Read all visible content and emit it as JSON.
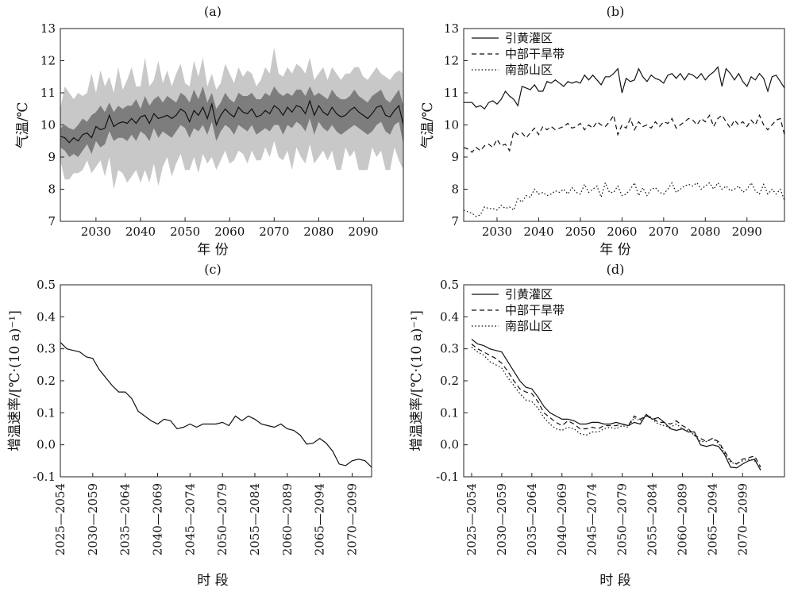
{
  "chart_data": [
    {
      "panel": "(a)",
      "type": "line",
      "ylabel": "气温/℃",
      "xlabel": "年 份",
      "ylim": [
        7,
        13
      ],
      "yticks": [
        "7",
        "8",
        "9",
        "10",
        "11",
        "12",
        "13"
      ],
      "xticks": [
        "2030",
        "2040",
        "2050",
        "2060",
        "2070",
        "2080",
        "2090"
      ],
      "x_range": [
        2022,
        2099
      ],
      "colors": {
        "outer_band": "#c8c8c8",
        "inner_band": "#7d7d7d",
        "line": "#111111"
      },
      "mean": [
        9.65,
        9.6,
        9.45,
        9.6,
        9.5,
        9.7,
        9.75,
        9.6,
        9.95,
        9.85,
        9.9,
        10.3,
        9.95,
        10.05,
        10.1,
        10.05,
        10.2,
        10.05,
        10.25,
        10.3,
        10.05,
        10.35,
        10.2,
        10.25,
        10.3,
        10.2,
        10.3,
        10.5,
        10.4,
        10.1,
        10.45,
        10.3,
        10.55,
        10.2,
        10.65,
        10.0,
        10.3,
        10.5,
        10.35,
        10.25,
        10.55,
        10.4,
        10.35,
        10.5,
        10.25,
        10.3,
        10.45,
        10.35,
        10.6,
        10.5,
        10.3,
        10.55,
        10.4,
        10.6,
        10.55,
        10.35,
        10.75,
        10.3,
        10.6,
        10.4,
        10.3,
        10.55,
        10.35,
        10.25,
        10.3,
        10.45,
        10.55,
        10.4,
        10.3,
        10.2,
        10.35,
        10.55,
        10.6,
        10.3,
        10.25,
        10.45,
        10.6,
        10.0
      ],
      "inner_band": {
        "upper": [
          9.9,
          10.0,
          9.9,
          9.85,
          10.0,
          10.2,
          10.1,
          10.3,
          10.4,
          10.6,
          10.4,
          10.7,
          10.4,
          10.6,
          10.5,
          10.6,
          10.6,
          10.8,
          10.5,
          10.9,
          10.6,
          10.8,
          10.9,
          10.7,
          10.9,
          10.8,
          10.7,
          11.0,
          10.9,
          10.7,
          11.1,
          10.8,
          11.2,
          10.7,
          11.0,
          10.5,
          10.7,
          11.0,
          10.8,
          10.7,
          11.0,
          10.9,
          10.9,
          11.0,
          10.8,
          10.8,
          11.0,
          10.9,
          11.2,
          11.0,
          10.9,
          11.0,
          10.9,
          11.1,
          11.1,
          10.9,
          11.2,
          10.9,
          11.0,
          10.9,
          10.8,
          11.1,
          10.9,
          10.8,
          10.8,
          10.9,
          11.1,
          10.9,
          10.8,
          10.7,
          10.9,
          11.0,
          11.1,
          10.8,
          10.7,
          10.9,
          11.1,
          10.6
        ],
        "lower": [
          9.3,
          9.2,
          9.0,
          9.1,
          9.0,
          9.2,
          9.4,
          9.1,
          9.5,
          9.3,
          9.4,
          9.8,
          9.5,
          9.6,
          9.6,
          9.5,
          9.7,
          9.5,
          9.8,
          9.7,
          9.5,
          9.9,
          9.6,
          9.8,
          9.7,
          9.6,
          9.8,
          10.0,
          9.9,
          9.6,
          9.9,
          9.8,
          10.0,
          9.7,
          10.1,
          9.5,
          9.8,
          10.0,
          9.9,
          9.7,
          10.0,
          9.9,
          9.8,
          10.0,
          9.7,
          9.8,
          9.9,
          9.8,
          10.0,
          10.0,
          9.7,
          10.0,
          9.9,
          10.1,
          10.0,
          9.8,
          10.2,
          9.7,
          10.1,
          9.9,
          9.8,
          10.0,
          9.8,
          9.7,
          9.8,
          9.9,
          10.0,
          9.9,
          9.8,
          9.7,
          9.8,
          10.0,
          10.1,
          9.8,
          9.7,
          10.0,
          10.1,
          9.4
        ]
      },
      "outer_band": {
        "upper": [
          10.5,
          11.2,
          11.0,
          10.8,
          11.0,
          10.9,
          11.0,
          11.6,
          11.0,
          11.7,
          11.2,
          11.5,
          11.0,
          11.8,
          11.1,
          11.4,
          11.8,
          11.2,
          11.2,
          12.1,
          11.2,
          11.4,
          12.0,
          11.3,
          11.7,
          11.2,
          11.6,
          11.9,
          11.3,
          11.2,
          12.0,
          11.5,
          12.1,
          11.2,
          11.6,
          11.1,
          11.3,
          11.9,
          11.6,
          11.3,
          11.8,
          11.5,
          11.7,
          11.6,
          11.2,
          11.4,
          11.8,
          11.6,
          12.4,
          11.6,
          11.5,
          11.8,
          11.6,
          11.9,
          11.8,
          11.6,
          12.1,
          11.4,
          11.6,
          11.8,
          11.4,
          11.8,
          11.6,
          11.4,
          11.6,
          11.6,
          11.8,
          11.8,
          11.5,
          11.4,
          11.6,
          11.8,
          11.6,
          11.5,
          11.4,
          11.6,
          11.7,
          11.6
        ],
        "lower": [
          8.9,
          8.3,
          8.3,
          8.5,
          8.5,
          8.6,
          8.9,
          8.5,
          8.7,
          8.9,
          8.4,
          9.0,
          8.0,
          8.6,
          8.5,
          8.2,
          8.4,
          8.6,
          8.2,
          8.6,
          8.2,
          8.8,
          8.1,
          8.7,
          9.0,
          8.4,
          8.8,
          9.1,
          8.6,
          8.6,
          9.0,
          8.5,
          9.1,
          8.8,
          9.0,
          8.6,
          8.9,
          9.2,
          8.8,
          8.9,
          9.2,
          9.1,
          8.8,
          9.2,
          8.9,
          8.9,
          9.3,
          9.0,
          9.5,
          9.0,
          8.9,
          9.2,
          8.6,
          9.3,
          9.0,
          8.8,
          9.4,
          8.8,
          9.0,
          9.2,
          8.9,
          9.2,
          8.6,
          8.6,
          9.3,
          9.0,
          9.2,
          8.6,
          8.6,
          8.6,
          9.3,
          9.0,
          9.2,
          8.6,
          8.6,
          9.3,
          8.9,
          8.6
        ]
      }
    },
    {
      "panel": "(b)",
      "type": "line",
      "ylabel": "气温/℃",
      "xlabel": "年 份",
      "ylim": [
        7,
        13
      ],
      "yticks": [
        "7",
        "8",
        "9",
        "10",
        "11",
        "12",
        "13"
      ],
      "xticks": [
        "2030",
        "2040",
        "2050",
        "2060",
        "2070",
        "2080",
        "2090"
      ],
      "x_range": [
        2022,
        2099
      ],
      "legend_position": "top-left",
      "series": [
        {
          "name": "引黄灌区",
          "dash": "solid",
          "values": [
            10.7,
            10.7,
            10.7,
            10.55,
            10.6,
            10.5,
            10.7,
            10.75,
            10.65,
            10.8,
            11.05,
            10.9,
            10.8,
            10.6,
            11.2,
            11.15,
            11.1,
            11.25,
            11.05,
            11.05,
            11.35,
            11.3,
            11.4,
            11.3,
            11.2,
            11.35,
            11.3,
            11.35,
            11.3,
            11.55,
            11.4,
            11.55,
            11.4,
            11.25,
            11.5,
            11.5,
            11.6,
            11.75,
            11.0,
            11.45,
            11.35,
            11.4,
            11.75,
            11.5,
            11.35,
            11.55,
            11.45,
            11.4,
            11.3,
            11.55,
            11.6,
            11.45,
            11.6,
            11.4,
            11.6,
            11.55,
            11.45,
            11.6,
            11.4,
            11.55,
            11.65,
            11.8,
            11.2,
            11.75,
            11.6,
            11.4,
            11.6,
            11.35,
            11.2,
            11.5,
            11.4,
            11.6,
            11.45,
            11.05,
            11.5,
            11.55,
            11.35,
            11.15
          ]
        },
        {
          "name": "中部干旱带",
          "dash": "dashed",
          "values": [
            9.3,
            9.25,
            9.15,
            9.3,
            9.2,
            9.35,
            9.4,
            9.3,
            9.55,
            9.35,
            9.4,
            9.2,
            9.8,
            9.7,
            9.75,
            9.6,
            9.75,
            9.9,
            9.7,
            9.95,
            9.85,
            9.95,
            9.85,
            9.9,
            9.95,
            10.05,
            9.9,
            9.95,
            10.05,
            9.85,
            10.0,
            9.9,
            10.1,
            10.0,
            9.95,
            10.1,
            10.3,
            9.7,
            10.0,
            9.9,
            10.2,
            9.85,
            10.1,
            9.95,
            10.0,
            9.9,
            10.1,
            9.95,
            10.1,
            10.05,
            10.2,
            9.9,
            10.0,
            10.1,
            10.2,
            10.15,
            10.0,
            10.2,
            10.1,
            10.3,
            9.95,
            10.2,
            10.3,
            10.1,
            9.9,
            10.15,
            10.0,
            10.1,
            9.95,
            10.15,
            10.0,
            10.3,
            10.0,
            9.85,
            10.0,
            10.15,
            10.2,
            9.7
          ]
        },
        {
          "name": "南部山区",
          "dash": "dotted",
          "values": [
            7.35,
            7.3,
            7.25,
            7.15,
            7.2,
            7.45,
            7.4,
            7.4,
            7.35,
            7.5,
            7.4,
            7.45,
            7.35,
            7.7,
            7.6,
            7.8,
            7.75,
            8.0,
            7.85,
            7.9,
            7.8,
            7.85,
            7.95,
            7.9,
            8.0,
            7.85,
            8.05,
            7.9,
            7.85,
            8.15,
            7.9,
            8.0,
            8.1,
            7.75,
            8.2,
            7.9,
            7.9,
            8.1,
            7.8,
            7.85,
            8.0,
            8.2,
            7.8,
            8.05,
            7.8,
            8.0,
            8.05,
            7.9,
            7.85,
            8.0,
            8.2,
            7.9,
            8.0,
            8.1,
            8.15,
            8.1,
            8.2,
            8.0,
            8.1,
            8.2,
            8.0,
            8.2,
            8.0,
            8.1,
            7.95,
            8.0,
            8.1,
            7.9,
            8.0,
            8.2,
            7.95,
            7.85,
            8.15,
            7.85,
            8.0,
            7.85,
            8.0,
            7.65
          ]
        }
      ]
    },
    {
      "panel": "(c)",
      "type": "line",
      "ylabel": "增温速率/[℃·(10 a)⁻¹]",
      "xlabel": "时 段",
      "ylim": [
        -0.1,
        0.5
      ],
      "yticks": [
        "-0.1",
        "0.0",
        "0.1",
        "0.2",
        "0.3",
        "0.4",
        "0.5"
      ],
      "xticks": [
        "2025—2054",
        "2030—2059",
        "2035—2064",
        "2040—2069",
        "2045—2074",
        "2050—2079",
        "2055—2084",
        "2060—2089",
        "2065—2094",
        "2070—2099"
      ],
      "periods_start": [
        2022,
        2070
      ],
      "values": [
        0.32,
        0.3,
        0.295,
        0.29,
        0.275,
        0.27,
        0.235,
        0.21,
        0.185,
        0.165,
        0.165,
        0.145,
        0.105,
        0.09,
        0.075,
        0.065,
        0.08,
        0.075,
        0.05,
        0.055,
        0.065,
        0.055,
        0.065,
        0.065,
        0.065,
        0.07,
        0.06,
        0.09,
        0.075,
        0.09,
        0.08,
        0.065,
        0.06,
        0.055,
        0.065,
        0.05,
        0.045,
        0.03,
        0.002,
        0.005,
        0.02,
        0.005,
        -0.02,
        -0.06,
        -0.065,
        -0.05,
        -0.045,
        -0.05,
        -0.07
      ]
    },
    {
      "panel": "(d)",
      "type": "line",
      "ylabel": "增温速率/[℃·(10 a)⁻¹]",
      "xlabel": "时 段",
      "ylim": [
        -0.1,
        0.5
      ],
      "yticks": [
        "-0.1",
        "0.0",
        "0.1",
        "0.2",
        "0.3",
        "0.4",
        "0.5"
      ],
      "xticks": [
        "2025—2054",
        "2030—2059",
        "2035—2064",
        "2040—2069",
        "2045—2074",
        "2050—2079",
        "2055—2084",
        "2060—2089",
        "2065—2094",
        "2070—2099"
      ],
      "periods_start": [
        2022,
        2070
      ],
      "legend_position": "top-left",
      "series": [
        {
          "name": "引黄灌区",
          "dash": "solid",
          "values": [
            0.33,
            0.315,
            0.31,
            0.3,
            0.295,
            0.29,
            0.26,
            0.23,
            0.2,
            0.18,
            0.175,
            0.15,
            0.12,
            0.1,
            0.09,
            0.08,
            0.08,
            0.075,
            0.065,
            0.065,
            0.07,
            0.07,
            0.065,
            0.065,
            0.07,
            0.065,
            0.06,
            0.07,
            0.065,
            0.095,
            0.08,
            0.085,
            0.07,
            0.05,
            0.045,
            0.05,
            0.04,
            0.04,
            0.0,
            -0.005,
            0.0,
            -0.005,
            -0.03,
            -0.07,
            -0.072,
            -0.06,
            -0.05,
            -0.045,
            -0.08
          ]
        },
        {
          "name": "中部干旱带",
          "dash": "dashed",
          "values": [
            0.315,
            0.3,
            0.29,
            0.28,
            0.27,
            0.255,
            0.23,
            0.2,
            0.175,
            0.165,
            0.16,
            0.135,
            0.1,
            0.085,
            0.07,
            0.06,
            0.075,
            0.065,
            0.05,
            0.05,
            0.055,
            0.05,
            0.06,
            0.06,
            0.06,
            0.065,
            0.06,
            0.09,
            0.08,
            0.09,
            0.085,
            0.07,
            0.07,
            0.065,
            0.075,
            0.06,
            0.05,
            0.03,
            0.02,
            0.01,
            0.02,
            0.01,
            -0.02,
            -0.05,
            -0.06,
            -0.045,
            -0.04,
            -0.035,
            -0.07
          ]
        },
        {
          "name": "南部山区",
          "dash": "dotted",
          "values": [
            0.305,
            0.29,
            0.28,
            0.26,
            0.25,
            0.24,
            0.21,
            0.185,
            0.16,
            0.14,
            0.135,
            0.115,
            0.085,
            0.065,
            0.05,
            0.045,
            0.055,
            0.05,
            0.035,
            0.03,
            0.04,
            0.04,
            0.05,
            0.055,
            0.05,
            0.06,
            0.055,
            0.085,
            0.075,
            0.09,
            0.08,
            0.065,
            0.06,
            0.055,
            0.065,
            0.05,
            0.045,
            0.03,
            0.01,
            0.01,
            0.02,
            0.005,
            -0.025,
            -0.055,
            -0.06,
            -0.05,
            -0.045,
            -0.05,
            -0.075
          ]
        }
      ]
    }
  ]
}
